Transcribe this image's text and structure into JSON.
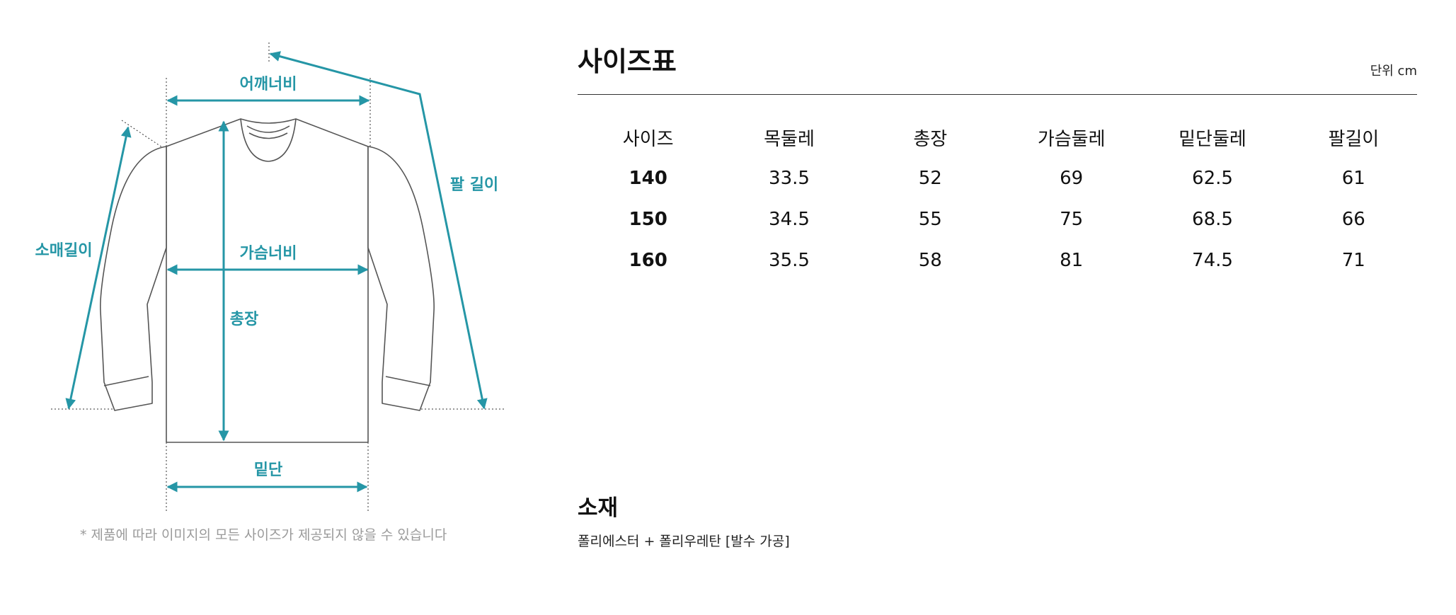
{
  "diagram": {
    "labels": {
      "shoulder": "어깨너비",
      "sleeve": "소매길이",
      "chest": "가슴너비",
      "length": "총장",
      "hem": "밑단",
      "arm": "팔 길이"
    },
    "note": "* 제품에 따라 이미지의 모든 사이즈가 제공되지 않을 수 있습니다",
    "colors": {
      "accent": "#2596a6",
      "garment_outline": "#555555",
      "guide": "#333333"
    }
  },
  "size_chart": {
    "title": "사이즈표",
    "unit": "단위 cm",
    "headers": [
      "사이즈",
      "목둘레",
      "총장",
      "가슴둘레",
      "밑단둘레",
      "팔길이"
    ],
    "rows": [
      [
        "140",
        "33.5",
        "52",
        "69",
        "62.5",
        "61"
      ],
      [
        "150",
        "34.5",
        "55",
        "75",
        "68.5",
        "66"
      ],
      [
        "160",
        "35.5",
        "58",
        "81",
        "74.5",
        "71"
      ]
    ]
  },
  "material": {
    "title": "소재",
    "value": "폴리에스터 + 폴리우레탄 [발수 가공]"
  }
}
